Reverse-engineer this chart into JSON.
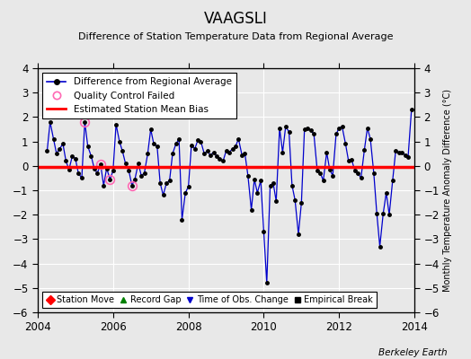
{
  "title": "VAAGSLI",
  "subtitle": "Difference of Station Temperature Data from Regional Average",
  "ylabel_right": "Monthly Temperature Anomaly Difference (°C)",
  "xlim": [
    2004.0,
    2014.0
  ],
  "ylim": [
    -6,
    4
  ],
  "yticks": [
    -6,
    -5,
    -4,
    -3,
    -2,
    -1,
    0,
    1,
    2,
    3,
    4
  ],
  "xticks": [
    2004,
    2006,
    2008,
    2010,
    2012,
    2014
  ],
  "background_color": "#e8e8e8",
  "plot_bg_color": "#e8e8e8",
  "bias_line_y": -0.05,
  "bias_color": "#ff0000",
  "line_color": "#0000cc",
  "marker_color": "#000000",
  "qc_fail_color": "#ff69b4",
  "watermark": "Berkeley Earth",
  "time_series": [
    [
      2004.25,
      0.6
    ],
    [
      2004.33,
      1.8
    ],
    [
      2004.42,
      1.1
    ],
    [
      2004.5,
      0.5
    ],
    [
      2004.58,
      0.7
    ],
    [
      2004.67,
      0.9
    ],
    [
      2004.75,
      0.2
    ],
    [
      2004.83,
      -0.15
    ],
    [
      2004.92,
      0.4
    ],
    [
      2005.0,
      0.3
    ],
    [
      2005.08,
      -0.3
    ],
    [
      2005.17,
      -0.5
    ],
    [
      2005.25,
      1.8
    ],
    [
      2005.33,
      0.8
    ],
    [
      2005.42,
      0.4
    ],
    [
      2005.5,
      -0.1
    ],
    [
      2005.58,
      -0.3
    ],
    [
      2005.67,
      0.05
    ],
    [
      2005.75,
      -0.8
    ],
    [
      2005.83,
      -0.1
    ],
    [
      2005.92,
      -0.55
    ],
    [
      2006.0,
      -0.2
    ],
    [
      2006.08,
      1.7
    ],
    [
      2006.17,
      1.0
    ],
    [
      2006.25,
      0.6
    ],
    [
      2006.33,
      0.1
    ],
    [
      2006.42,
      -0.2
    ],
    [
      2006.5,
      -0.8
    ],
    [
      2006.58,
      -0.55
    ],
    [
      2006.67,
      0.1
    ],
    [
      2006.75,
      -0.4
    ],
    [
      2006.83,
      -0.3
    ],
    [
      2006.92,
      0.5
    ],
    [
      2007.0,
      1.5
    ],
    [
      2007.08,
      0.9
    ],
    [
      2007.17,
      0.8
    ],
    [
      2007.25,
      -0.7
    ],
    [
      2007.33,
      -1.2
    ],
    [
      2007.42,
      -0.7
    ],
    [
      2007.5,
      -0.6
    ],
    [
      2007.58,
      0.5
    ],
    [
      2007.67,
      0.9
    ],
    [
      2007.75,
      1.1
    ],
    [
      2007.83,
      -2.2
    ],
    [
      2007.92,
      -1.1
    ],
    [
      2008.0,
      -0.85
    ],
    [
      2008.08,
      0.85
    ],
    [
      2008.17,
      0.7
    ],
    [
      2008.25,
      1.05
    ],
    [
      2008.33,
      1.0
    ],
    [
      2008.42,
      0.5
    ],
    [
      2008.5,
      0.6
    ],
    [
      2008.58,
      0.45
    ],
    [
      2008.67,
      0.55
    ],
    [
      2008.75,
      0.4
    ],
    [
      2008.83,
      0.3
    ],
    [
      2008.92,
      0.2
    ],
    [
      2009.0,
      0.6
    ],
    [
      2009.08,
      0.55
    ],
    [
      2009.17,
      0.7
    ],
    [
      2009.25,
      0.8
    ],
    [
      2009.33,
      1.1
    ],
    [
      2009.42,
      0.45
    ],
    [
      2009.5,
      0.5
    ],
    [
      2009.58,
      -0.4
    ],
    [
      2009.67,
      -1.8
    ],
    [
      2009.75,
      -0.55
    ],
    [
      2009.83,
      -1.1
    ],
    [
      2009.92,
      -0.6
    ],
    [
      2010.0,
      -2.7
    ],
    [
      2010.08,
      -4.8
    ],
    [
      2010.17,
      -0.8
    ],
    [
      2010.25,
      -0.7
    ],
    [
      2010.33,
      -1.45
    ],
    [
      2010.42,
      1.55
    ],
    [
      2010.5,
      0.55
    ],
    [
      2010.58,
      1.6
    ],
    [
      2010.67,
      1.4
    ],
    [
      2010.75,
      -0.8
    ],
    [
      2010.83,
      -1.4
    ],
    [
      2010.92,
      -2.8
    ],
    [
      2011.0,
      -1.5
    ],
    [
      2011.08,
      1.5
    ],
    [
      2011.17,
      1.55
    ],
    [
      2011.25,
      1.45
    ],
    [
      2011.33,
      1.3
    ],
    [
      2011.42,
      -0.2
    ],
    [
      2011.5,
      -0.3
    ],
    [
      2011.58,
      -0.6
    ],
    [
      2011.67,
      0.55
    ],
    [
      2011.75,
      -0.15
    ],
    [
      2011.83,
      -0.4
    ],
    [
      2011.92,
      1.3
    ],
    [
      2012.0,
      1.55
    ],
    [
      2012.08,
      1.6
    ],
    [
      2012.17,
      0.9
    ],
    [
      2012.25,
      0.2
    ],
    [
      2012.33,
      0.25
    ],
    [
      2012.42,
      -0.2
    ],
    [
      2012.5,
      -0.3
    ],
    [
      2012.58,
      -0.5
    ],
    [
      2012.67,
      0.65
    ],
    [
      2012.75,
      1.55
    ],
    [
      2012.83,
      1.1
    ],
    [
      2012.92,
      -0.3
    ],
    [
      2013.0,
      -1.95
    ],
    [
      2013.08,
      -3.3
    ],
    [
      2013.17,
      -1.95
    ],
    [
      2013.25,
      -1.1
    ],
    [
      2013.33,
      -2.0
    ],
    [
      2013.42,
      -0.6
    ],
    [
      2013.5,
      0.6
    ],
    [
      2013.58,
      0.55
    ],
    [
      2013.67,
      0.55
    ],
    [
      2013.75,
      0.45
    ],
    [
      2013.83,
      0.35
    ],
    [
      2013.92,
      2.3
    ]
  ],
  "qc_fail_points": [
    [
      2005.25,
      1.8
    ],
    [
      2005.67,
      0.05
    ],
    [
      2005.92,
      -0.55
    ],
    [
      2006.5,
      -0.8
    ]
  ]
}
